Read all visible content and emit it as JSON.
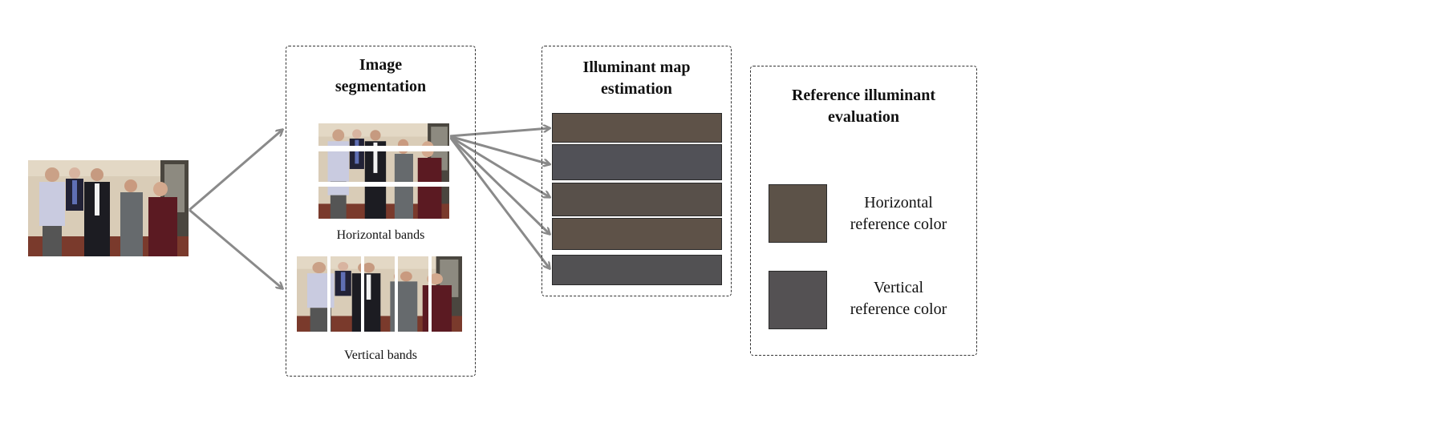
{
  "segmentation": {
    "title_line1": "Image",
    "title_line2": "segmentation",
    "horizontal_caption": "Horizontal bands",
    "vertical_caption": "Vertical bands"
  },
  "illuminant_map": {
    "title_line1": "Illuminant map",
    "title_line2": "estimation",
    "bars": [
      {
        "color": "#5e5248"
      },
      {
        "color": "#515157"
      },
      {
        "color": "#58504a"
      },
      {
        "color": "#5e5248"
      },
      {
        "color": "#525153"
      }
    ]
  },
  "reference": {
    "title_line1": "Reference illuminant",
    "title_line2": "evaluation",
    "horizontal": {
      "line1": "Horizontal",
      "line2": "reference color",
      "color": "#5c5248"
    },
    "vertical": {
      "line1": "Vertical",
      "line2": "reference color",
      "color": "#545153"
    }
  },
  "colors": {
    "arrow": "#8a8a8a",
    "border": "#333333"
  }
}
